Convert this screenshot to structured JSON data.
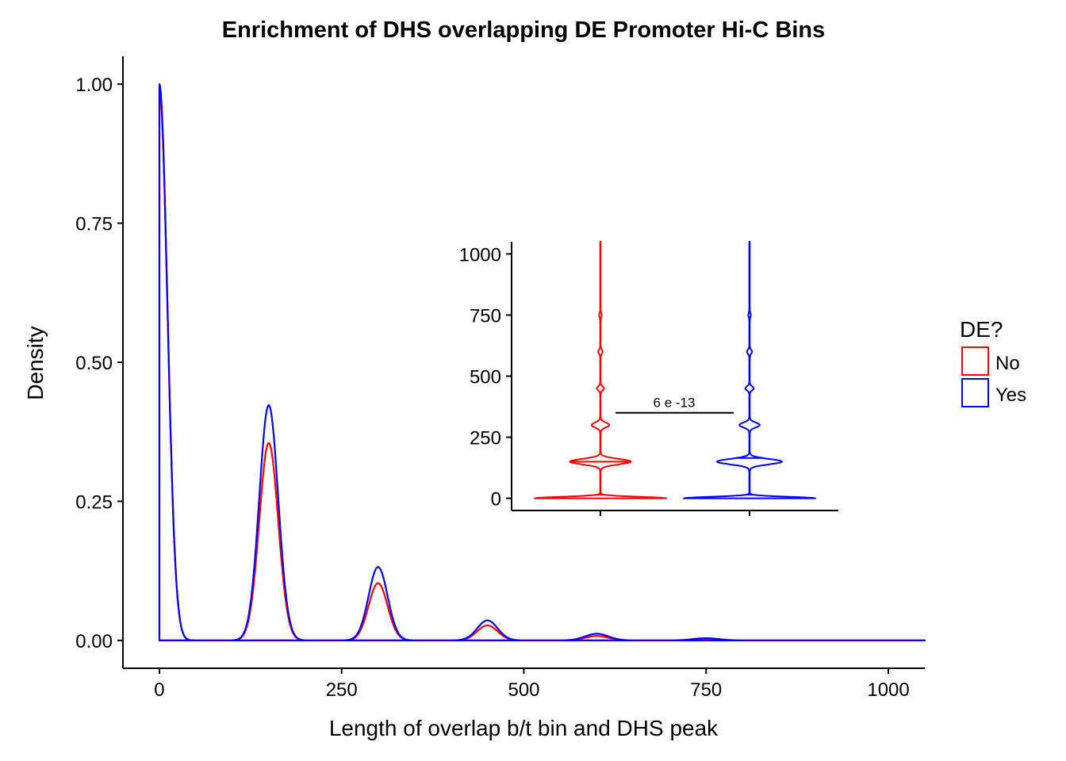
{
  "chart_data": [
    {
      "type": "line",
      "chart": "density",
      "title": "Enrichment of DHS overlapping DE Promoter Hi-C Bins",
      "xlabel": "Length of overlap b/t bin and DHS peak",
      "ylabel": "Density",
      "xlim": [
        -50,
        1050
      ],
      "ylim": [
        -0.05,
        1.05
      ],
      "x_ticks": [
        0,
        250,
        500,
        750,
        1000
      ],
      "x_tick_labels": [
        "0",
        "250",
        "500",
        "750",
        "1000"
      ],
      "y_ticks": [
        0,
        0.25,
        0.5,
        0.75,
        1.0
      ],
      "y_tick_labels": [
        "0.00",
        "0.25",
        "0.50",
        "0.75",
        "1.00"
      ],
      "grid": false,
      "legend": {
        "title": "DE?",
        "position": "right",
        "entries": [
          {
            "label": "No",
            "color": "#ff0000"
          },
          {
            "label": "Yes",
            "color": "#0000ff"
          }
        ]
      },
      "series": [
        {
          "name": "No",
          "color": "#ff0000",
          "peaks": [
            {
              "x": 0,
              "y": 0.99
            },
            {
              "x": 150,
              "y": 0.355
            },
            {
              "x": 300,
              "y": 0.103
            },
            {
              "x": 450,
              "y": 0.027
            },
            {
              "x": 600,
              "y": 0.008
            },
            {
              "x": 750,
              "y": 0.002
            }
          ]
        },
        {
          "name": "Yes",
          "color": "#0000ff",
          "peaks": [
            {
              "x": 0,
              "y": 1.0
            },
            {
              "x": 150,
              "y": 0.423
            },
            {
              "x": 300,
              "y": 0.132
            },
            {
              "x": 450,
              "y": 0.036
            },
            {
              "x": 600,
              "y": 0.012
            },
            {
              "x": 750,
              "y": 0.004
            }
          ]
        }
      ]
    },
    {
      "type": "violin",
      "chart": "inset",
      "ylim": [
        -50,
        1050
      ],
      "y_ticks": [
        0,
        250,
        500,
        750,
        1000
      ],
      "y_tick_labels": [
        "0",
        "250",
        "500",
        "750",
        "1000"
      ],
      "x_tick_labels": [
        "",
        ""
      ],
      "categories": [
        "No",
        "Yes"
      ],
      "annotation": "6 e -13",
      "annotation_bracket_y": 350,
      "groups": [
        {
          "name": "No",
          "color": "#ff0000",
          "max": 1050,
          "modes": [
            {
              "y": 0,
              "rel_width": 1.0
            },
            {
              "y": 150,
              "rel_width": 0.46
            },
            {
              "y": 300,
              "rel_width": 0.13
            },
            {
              "y": 450,
              "rel_width": 0.05
            },
            {
              "y": 600,
              "rel_width": 0.03
            },
            {
              "y": 750,
              "rel_width": 0.015
            }
          ],
          "quantile_lines": [
            15,
            150
          ]
        },
        {
          "name": "Yes",
          "color": "#0000ff",
          "max": 1050,
          "modes": [
            {
              "y": 0,
              "rel_width": 1.0
            },
            {
              "y": 150,
              "rel_width": 0.49
            },
            {
              "y": 300,
              "rel_width": 0.15
            },
            {
              "y": 450,
              "rel_width": 0.06
            },
            {
              "y": 600,
              "rel_width": 0.035
            },
            {
              "y": 750,
              "rel_width": 0.015
            }
          ],
          "quantile_lines": [
            15,
            165
          ]
        }
      ]
    }
  ]
}
